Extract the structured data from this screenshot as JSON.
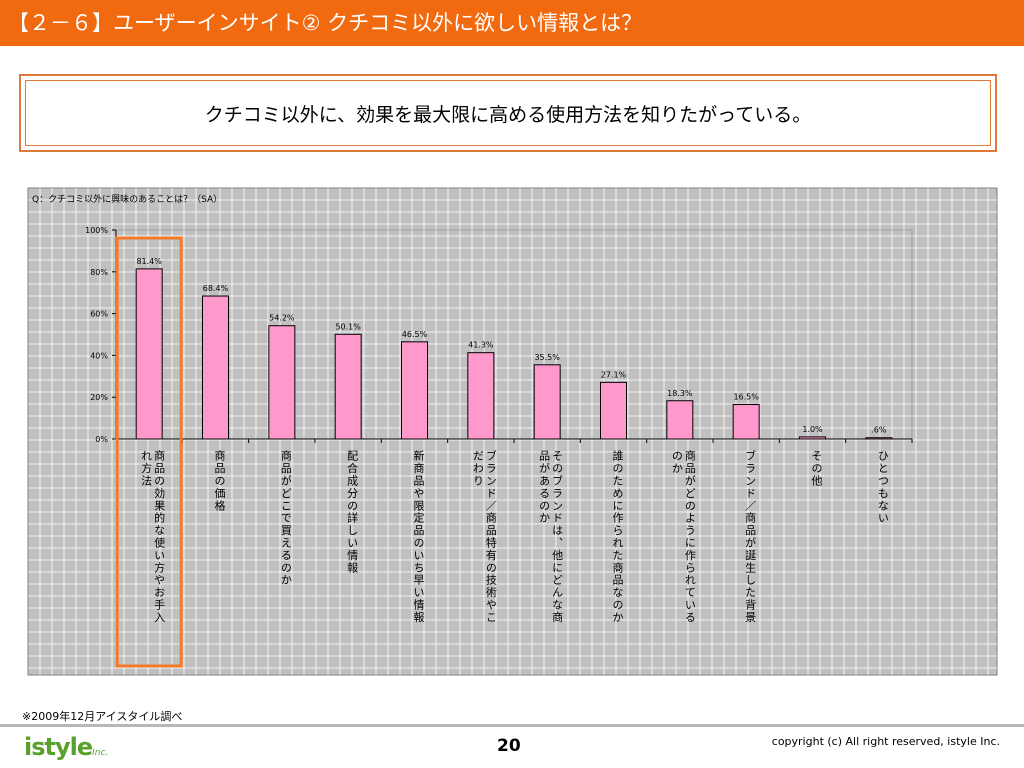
{
  "header": {
    "title": "【２－６】ユーザーインサイト②  クチコミ以外に欲しい情報とは？",
    "color": "#f26a10"
  },
  "summary": {
    "text": "クチコミ以外に、効果を最大限に高める使用方法を知りたがっている。"
  },
  "chart_data": {
    "type": "bar",
    "title": "Q：クチコミ以外に興味のあることは？（SA）",
    "categories": [
      "商品の効果的な使い方やお手入れ方法",
      "商品の価格",
      "商品がどこで買えるのか",
      "配合成分の詳しい情報",
      "新商品や限定品のいち早い情報",
      "ブランド／商品特有の技術やこだわり",
      "そのブランドは、他にどんな商品があるのか",
      "誰のために作られた商品なのか",
      "商品がどのように作られているのか",
      "ブランド／商品が誕生した背景",
      "その他",
      "ひとつもない"
    ],
    "values": [
      81.4,
      68.4,
      54.2,
      50.1,
      46.5,
      41.3,
      35.5,
      27.1,
      18.3,
      16.5,
      1.0,
      0.6
    ],
    "value_labels": [
      "81.4%",
      "68.4%",
      "54.2%",
      "50.1%",
      "46.5%",
      "41.3%",
      "35.5%",
      "27.1%",
      "18.3%",
      "16.5%",
      "1.0%",
      ".6%"
    ],
    "category_label_lines": [
      [
        "商品の効果的な使い方やお手入",
        "れ方法"
      ],
      [
        "商品の価格"
      ],
      [
        "商品がどこで買えるのか"
      ],
      [
        "配合成分の詳しい情報"
      ],
      [
        "新商品や限定品のいち早い情報"
      ],
      [
        "ブランド／商品特有の技術やこ",
        "だわり"
      ],
      [
        "そのブランドは、他にどんな商",
        "品があるのか"
      ],
      [
        "誰のために作られた商品なのか"
      ],
      [
        "商品がどのように作られている",
        "のか"
      ],
      [
        "ブランド／商品が誕生した背景"
      ],
      [
        "その他"
      ],
      [
        "ひとつもない"
      ]
    ],
    "y_ticks": [
      "0%",
      "20%",
      "40%",
      "60%",
      "80%",
      "100%"
    ],
    "ylim": [
      0,
      100
    ],
    "bar_color": "#ff99cc",
    "plot_background": "#c0c0c0",
    "grid": true,
    "highlight_category_index": 0,
    "highlight_color": "#f47a28"
  },
  "footnote": "※2009年12月アイスタイル調べ",
  "footer": {
    "logo_text": "istyle",
    "logo_sub": "Inc.",
    "page_number": "20",
    "copyright": "copyright (c) All right reserved, istyle Inc."
  }
}
